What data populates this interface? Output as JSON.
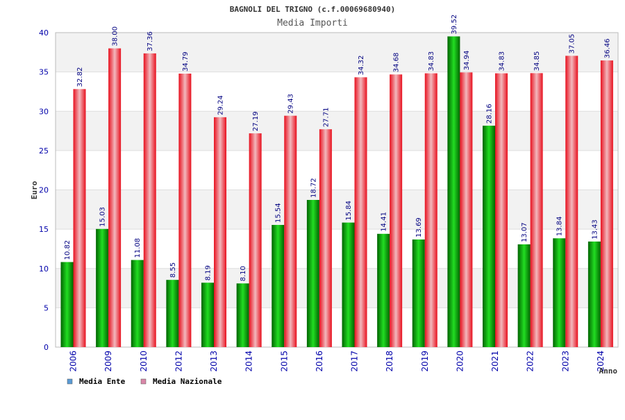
{
  "chart_data": {
    "type": "bar",
    "title": "BAGNOLI DEL TRIGNO (c.f.00069680940)",
    "subtitle": "Media Importi",
    "xlabel": "Anno",
    "ylabel": "Euro",
    "ylim": [
      0,
      40
    ],
    "yticks": [
      0,
      5,
      10,
      15,
      20,
      25,
      30,
      35,
      40
    ],
    "grid": true,
    "legend_position": "bottom-left",
    "categories": [
      "2006",
      "2009",
      "2010",
      "2012",
      "2013",
      "2014",
      "2015",
      "2016",
      "2017",
      "2018",
      "2019",
      "2020",
      "2021",
      "2022",
      "2023",
      "2024"
    ],
    "series": [
      {
        "name": "Media Ente",
        "color": "#00b000",
        "legend_color": "#5b9bd5",
        "values": [
          10.82,
          15.03,
          11.08,
          8.55,
          8.19,
          8.1,
          15.54,
          18.72,
          15.84,
          14.41,
          13.69,
          39.52,
          28.16,
          13.07,
          13.84,
          13.43
        ],
        "labels": [
          "10.82",
          "15.03",
          "11.08",
          "8.55",
          "8.19",
          "8.10",
          "15.54",
          "18.72",
          "15.84",
          "14.41",
          "13.69",
          "39.52",
          "28.16",
          "13.07",
          "13.84",
          "13.43"
        ]
      },
      {
        "name": "Media Nazionale",
        "color": "#e8101e",
        "legend_color": "#d987a8",
        "values": [
          32.82,
          38.0,
          37.36,
          34.79,
          29.24,
          27.19,
          29.43,
          27.71,
          34.32,
          34.68,
          34.83,
          34.94,
          34.83,
          34.85,
          37.05,
          36.46
        ],
        "labels": [
          "32.82",
          "38.00",
          "37.36",
          "34.79",
          "29.24",
          "27.19",
          "29.43",
          "27.71",
          "34.32",
          "34.68",
          "34.83",
          "34.94",
          "34.83",
          "34.85",
          "37.05",
          "36.46"
        ]
      }
    ]
  }
}
